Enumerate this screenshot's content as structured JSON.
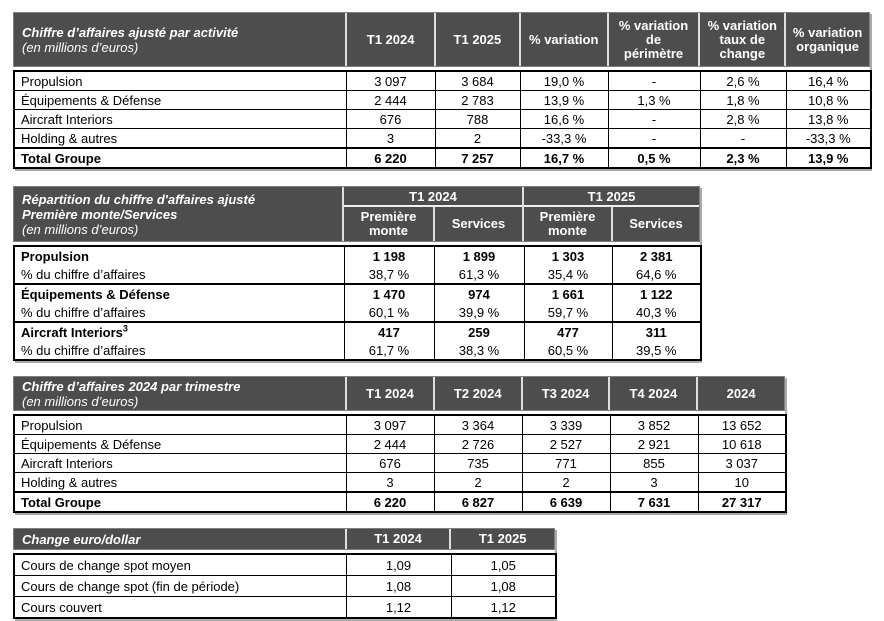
{
  "colors": {
    "header_background": "#4d4d4d",
    "header_text": "#ffffff",
    "grid_border": "#000000"
  },
  "tables": [
    {
      "title": "Chiffre d’affaires ajusté par activité",
      "subtitle": "(en millions d’euros)",
      "columns": [
        "T1 2024",
        "T1 2025",
        "% variation",
        [
          "% variation",
          "de",
          "périmètre"
        ],
        [
          "% variation",
          "taux de",
          "change"
        ],
        [
          "% variation",
          "organique"
        ]
      ],
      "rows": [
        {
          "label": "Propulsion",
          "bold": false,
          "values": [
            "3 097",
            "3 684",
            "19,0 %",
            "-",
            "2,6 %",
            "16,4 %"
          ]
        },
        {
          "label": "Équipements & Défense",
          "bold": false,
          "values": [
            "2 444",
            "2 783",
            "13,9 %",
            "1,3 %",
            "1,8 %",
            "10,8 %"
          ]
        },
        {
          "label": "Aircraft Interiors",
          "bold": false,
          "values": [
            "676",
            "788",
            "16,6 %",
            "-",
            "2,8 %",
            "13,8 %"
          ]
        },
        {
          "label": "Holding & autres",
          "bold": false,
          "values": [
            "3",
            "2",
            "-33,3 %",
            "-",
            "-",
            "-33,3 %"
          ]
        },
        {
          "label": "Total Groupe",
          "bold": true,
          "values": [
            "6 220",
            "7 257",
            "16,7 %",
            "0,5 %",
            "2,3 %",
            "13,9 %"
          ]
        }
      ]
    },
    {
      "title": "Répartition du chiffre d'affaires ajusté",
      "title2": "Première monte/Services",
      "subtitle": "(en millions d’euros)",
      "groups": [
        "T1 2024",
        "T1 2025"
      ],
      "subcolumns": [
        [
          "Première",
          "monte"
        ],
        "Services",
        [
          "Première",
          "monte"
        ],
        "Services"
      ],
      "rows": [
        {
          "label": "Propulsion",
          "bold": true,
          "values": [
            "1 198",
            "1 899",
            "1 303",
            "2 381"
          ]
        },
        {
          "label": "% du chiffre d’affaires",
          "bold": false,
          "values": [
            "38,7 %",
            "61,3 %",
            "35,4 %",
            "64,6 %"
          ]
        },
        {
          "label": "Équipements & Défense",
          "bold": true,
          "values": [
            "1 470",
            "974",
            "1 661",
            "1 122"
          ]
        },
        {
          "label": "% du chiffre d’affaires",
          "bold": false,
          "values": [
            "60,1 %",
            "39,9 %",
            "59,7 %",
            "40,3 %"
          ]
        },
        {
          "label": "Aircraft Interiors",
          "bold": true,
          "sup": "3",
          "values": [
            "417",
            "259",
            "477",
            "311"
          ]
        },
        {
          "label": "% du chiffre d’affaires",
          "bold": false,
          "values": [
            "61,7 %",
            "38,3 %",
            "60,5 %",
            "39,5 %"
          ]
        }
      ]
    },
    {
      "title": "Chiffre d’affaires 2024 par trimestre",
      "subtitle": "(en millions d’euros)",
      "columns": [
        "T1 2024",
        "T2 2024",
        "T3 2024",
        "T4 2024",
        "2024"
      ],
      "rows": [
        {
          "label": "Propulsion",
          "bold": false,
          "values": [
            "3 097",
            "3 364",
            "3 339",
            "3 852",
            "13 652"
          ]
        },
        {
          "label": "Équipements & Défense",
          "bold": false,
          "values": [
            "2 444",
            "2 726",
            "2 527",
            "2 921",
            "10 618"
          ]
        },
        {
          "label": "Aircraft Interiors",
          "bold": false,
          "values": [
            "676",
            "735",
            "771",
            "855",
            "3 037"
          ]
        },
        {
          "label": "Holding & autres",
          "bold": false,
          "values": [
            "3",
            "2",
            "2",
            "3",
            "10"
          ]
        },
        {
          "label": "Total Groupe",
          "bold": true,
          "values": [
            "6 220",
            "6 827",
            "6 639",
            "7 631",
            "27 317"
          ]
        }
      ]
    },
    {
      "title": "Change euro/dollar",
      "columns": [
        "T1 2024",
        "T1 2025"
      ],
      "rows": [
        {
          "label": "Cours de change spot moyen",
          "bold": false,
          "values": [
            "1,09",
            "1,05"
          ]
        },
        {
          "label": "Cours de change spot (fin de période)",
          "bold": false,
          "values": [
            "1,08",
            "1,08"
          ]
        },
        {
          "label": "Cours couvert",
          "bold": false,
          "values": [
            "1,12",
            "1,12"
          ]
        }
      ]
    }
  ]
}
